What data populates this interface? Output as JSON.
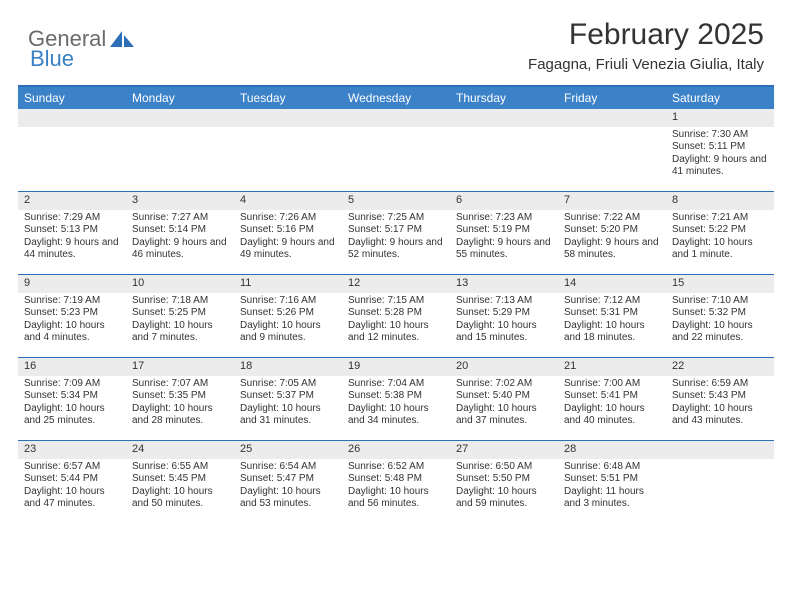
{
  "brand": {
    "word1": "General",
    "word2": "Blue"
  },
  "header": {
    "title": "February 2025",
    "subtitle": "Fagagna, Friuli Venezia Giulia, Italy"
  },
  "colors": {
    "header_bar": "#3b82c9",
    "rule": "#2d6eb8",
    "daynum_bg": "#ececec",
    "text": "#333333",
    "logo_gray": "#6b6b6b",
    "logo_blue": "#3b7fc4",
    "background": "#ffffff"
  },
  "fonts": {
    "title_size": 30,
    "subtitle_size": 15,
    "dow_size": 12,
    "daynum_size": 11,
    "body_size": 10
  },
  "dow": [
    "Sunday",
    "Monday",
    "Tuesday",
    "Wednesday",
    "Thursday",
    "Friday",
    "Saturday"
  ],
  "weeks": [
    [
      {
        "n": "",
        "sr": "",
        "ss": "",
        "dl": "",
        "empty": true
      },
      {
        "n": "",
        "sr": "",
        "ss": "",
        "dl": "",
        "empty": true
      },
      {
        "n": "",
        "sr": "",
        "ss": "",
        "dl": "",
        "empty": true
      },
      {
        "n": "",
        "sr": "",
        "ss": "",
        "dl": "",
        "empty": true
      },
      {
        "n": "",
        "sr": "",
        "ss": "",
        "dl": "",
        "empty": true
      },
      {
        "n": "",
        "sr": "",
        "ss": "",
        "dl": "",
        "empty": true
      },
      {
        "n": "1",
        "sr": "Sunrise: 7:30 AM",
        "ss": "Sunset: 5:11 PM",
        "dl": "Daylight: 9 hours and 41 minutes."
      }
    ],
    [
      {
        "n": "2",
        "sr": "Sunrise: 7:29 AM",
        "ss": "Sunset: 5:13 PM",
        "dl": "Daylight: 9 hours and 44 minutes."
      },
      {
        "n": "3",
        "sr": "Sunrise: 7:27 AM",
        "ss": "Sunset: 5:14 PM",
        "dl": "Daylight: 9 hours and 46 minutes."
      },
      {
        "n": "4",
        "sr": "Sunrise: 7:26 AM",
        "ss": "Sunset: 5:16 PM",
        "dl": "Daylight: 9 hours and 49 minutes."
      },
      {
        "n": "5",
        "sr": "Sunrise: 7:25 AM",
        "ss": "Sunset: 5:17 PM",
        "dl": "Daylight: 9 hours and 52 minutes."
      },
      {
        "n": "6",
        "sr": "Sunrise: 7:23 AM",
        "ss": "Sunset: 5:19 PM",
        "dl": "Daylight: 9 hours and 55 minutes."
      },
      {
        "n": "7",
        "sr": "Sunrise: 7:22 AM",
        "ss": "Sunset: 5:20 PM",
        "dl": "Daylight: 9 hours and 58 minutes."
      },
      {
        "n": "8",
        "sr": "Sunrise: 7:21 AM",
        "ss": "Sunset: 5:22 PM",
        "dl": "Daylight: 10 hours and 1 minute."
      }
    ],
    [
      {
        "n": "9",
        "sr": "Sunrise: 7:19 AM",
        "ss": "Sunset: 5:23 PM",
        "dl": "Daylight: 10 hours and 4 minutes."
      },
      {
        "n": "10",
        "sr": "Sunrise: 7:18 AM",
        "ss": "Sunset: 5:25 PM",
        "dl": "Daylight: 10 hours and 7 minutes."
      },
      {
        "n": "11",
        "sr": "Sunrise: 7:16 AM",
        "ss": "Sunset: 5:26 PM",
        "dl": "Daylight: 10 hours and 9 minutes."
      },
      {
        "n": "12",
        "sr": "Sunrise: 7:15 AM",
        "ss": "Sunset: 5:28 PM",
        "dl": "Daylight: 10 hours and 12 minutes."
      },
      {
        "n": "13",
        "sr": "Sunrise: 7:13 AM",
        "ss": "Sunset: 5:29 PM",
        "dl": "Daylight: 10 hours and 15 minutes."
      },
      {
        "n": "14",
        "sr": "Sunrise: 7:12 AM",
        "ss": "Sunset: 5:31 PM",
        "dl": "Daylight: 10 hours and 18 minutes."
      },
      {
        "n": "15",
        "sr": "Sunrise: 7:10 AM",
        "ss": "Sunset: 5:32 PM",
        "dl": "Daylight: 10 hours and 22 minutes."
      }
    ],
    [
      {
        "n": "16",
        "sr": "Sunrise: 7:09 AM",
        "ss": "Sunset: 5:34 PM",
        "dl": "Daylight: 10 hours and 25 minutes."
      },
      {
        "n": "17",
        "sr": "Sunrise: 7:07 AM",
        "ss": "Sunset: 5:35 PM",
        "dl": "Daylight: 10 hours and 28 minutes."
      },
      {
        "n": "18",
        "sr": "Sunrise: 7:05 AM",
        "ss": "Sunset: 5:37 PM",
        "dl": "Daylight: 10 hours and 31 minutes."
      },
      {
        "n": "19",
        "sr": "Sunrise: 7:04 AM",
        "ss": "Sunset: 5:38 PM",
        "dl": "Daylight: 10 hours and 34 minutes."
      },
      {
        "n": "20",
        "sr": "Sunrise: 7:02 AM",
        "ss": "Sunset: 5:40 PM",
        "dl": "Daylight: 10 hours and 37 minutes."
      },
      {
        "n": "21",
        "sr": "Sunrise: 7:00 AM",
        "ss": "Sunset: 5:41 PM",
        "dl": "Daylight: 10 hours and 40 minutes."
      },
      {
        "n": "22",
        "sr": "Sunrise: 6:59 AM",
        "ss": "Sunset: 5:43 PM",
        "dl": "Daylight: 10 hours and 43 minutes."
      }
    ],
    [
      {
        "n": "23",
        "sr": "Sunrise: 6:57 AM",
        "ss": "Sunset: 5:44 PM",
        "dl": "Daylight: 10 hours and 47 minutes."
      },
      {
        "n": "24",
        "sr": "Sunrise: 6:55 AM",
        "ss": "Sunset: 5:45 PM",
        "dl": "Daylight: 10 hours and 50 minutes."
      },
      {
        "n": "25",
        "sr": "Sunrise: 6:54 AM",
        "ss": "Sunset: 5:47 PM",
        "dl": "Daylight: 10 hours and 53 minutes."
      },
      {
        "n": "26",
        "sr": "Sunrise: 6:52 AM",
        "ss": "Sunset: 5:48 PM",
        "dl": "Daylight: 10 hours and 56 minutes."
      },
      {
        "n": "27",
        "sr": "Sunrise: 6:50 AM",
        "ss": "Sunset: 5:50 PM",
        "dl": "Daylight: 10 hours and 59 minutes."
      },
      {
        "n": "28",
        "sr": "Sunrise: 6:48 AM",
        "ss": "Sunset: 5:51 PM",
        "dl": "Daylight: 11 hours and 3 minutes."
      },
      {
        "n": "",
        "sr": "",
        "ss": "",
        "dl": "",
        "empty": true
      }
    ]
  ]
}
